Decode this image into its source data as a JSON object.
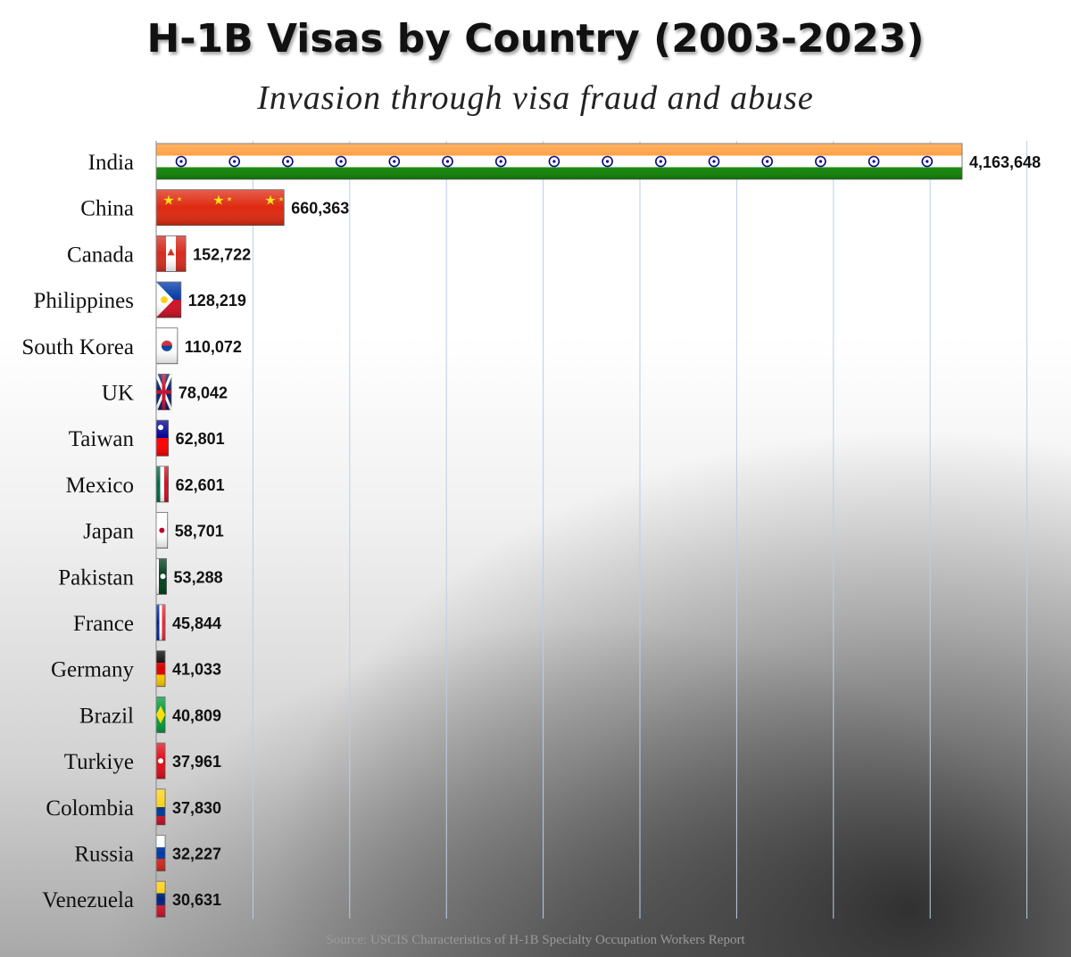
{
  "title": "H-1B Visas by Country (2003-2023)",
  "subtitle": "Invasion through visa fraud and abuse",
  "source": "Source: USCIS Characteristics of H-1B Specialty Occupation Workers Report",
  "chart_data": {
    "type": "bar",
    "orientation": "horizontal",
    "title": "H-1B Visas by Country (2003-2023)",
    "subtitle": "Invasion through visa fraud and abuse",
    "xlabel": "",
    "ylabel": "",
    "grid": true,
    "xlim": [
      0,
      4163648
    ],
    "categories": [
      "India",
      "China",
      "Canada",
      "Philippines",
      "South Korea",
      "UK",
      "Taiwan",
      "Mexico",
      "Japan",
      "Pakistan",
      "France",
      "Germany",
      "Brazil",
      "Turkiye",
      "Colombia",
      "Russia",
      "Venezuela"
    ],
    "values": [
      4163648,
      660363,
      152722,
      128219,
      110072,
      78042,
      62801,
      62601,
      58701,
      53288,
      45844,
      41033,
      40809,
      37961,
      37830,
      32227,
      30631
    ],
    "value_labels": [
      "4,163,648",
      "660,363",
      "152,722",
      "128,219",
      "110,072",
      "78,042",
      "62,801",
      "62,601",
      "58,701",
      "53,288",
      "45,844",
      "41,033",
      "40,809",
      "37,961",
      "37,830",
      "32,227",
      "30,631"
    ],
    "bar_fills": [
      "flag-india",
      "flag-china",
      "flag-canada",
      "flag-philippines",
      "flag-south-korea",
      "flag-uk",
      "flag-taiwan",
      "flag-mexico",
      "flag-japan",
      "flag-pakistan",
      "flag-france",
      "flag-germany",
      "flag-brazil",
      "flag-turkiye",
      "flag-colombia",
      "flag-russia",
      "flag-venezuela"
    ]
  }
}
